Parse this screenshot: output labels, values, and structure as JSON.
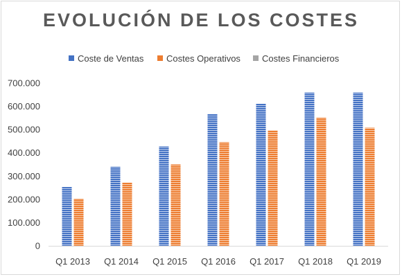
{
  "chart_data": {
    "type": "bar",
    "title": "EVOLUCIÓN DE LOS COSTES",
    "categories": [
      "Q1 2013",
      "Q1 2014",
      "Q1 2015",
      "Q1 2016",
      "Q1 2017",
      "Q1 2018",
      "Q1 2019"
    ],
    "series": [
      {
        "name": "Coste de Ventas",
        "color": "#4472c4",
        "values": [
          253000,
          340000,
          428000,
          567000,
          611000,
          660000,
          660000
        ]
      },
      {
        "name": "Costes Operativos",
        "color": "#ed7d31",
        "values": [
          203000,
          272000,
          350000,
          446000,
          497000,
          552000,
          508000
        ]
      },
      {
        "name": "Costes Financieros",
        "color": "#a5a5a5",
        "values": [
          0,
          0,
          0,
          0,
          0,
          0,
          0
        ]
      }
    ],
    "yticks": [
      "0",
      "100.000",
      "200.000",
      "300.000",
      "400.000",
      "500.000",
      "600.000",
      "700.000"
    ],
    "ylim": [
      0,
      700000
    ],
    "legend_position": "top",
    "grid": false
  }
}
